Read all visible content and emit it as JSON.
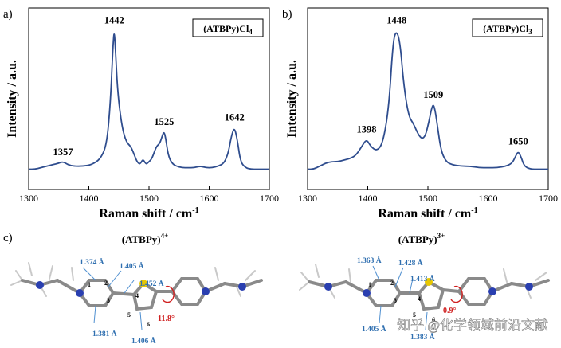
{
  "chart_data": [
    {
      "panel": "a)",
      "type": "line",
      "title": "(ATBPy)Cl4",
      "legend_main": "(ATBPy)Cl",
      "legend_sub": "4",
      "xlabel": "Raman shift / cm",
      "xlabel_sup": "-1",
      "ylabel": "Intensity / a.u.",
      "xlim": [
        1300,
        1700
      ],
      "ylim": [
        0,
        1
      ],
      "xticks": [
        1300,
        1400,
        1500,
        1600,
        1700
      ],
      "x": [
        1300,
        1310,
        1320,
        1330,
        1340,
        1350,
        1357,
        1365,
        1375,
        1390,
        1405,
        1420,
        1430,
        1436,
        1440,
        1442,
        1444,
        1448,
        1455,
        1462,
        1470,
        1476,
        1480,
        1485,
        1490,
        1495,
        1500,
        1505,
        1512,
        1518,
        1522,
        1525,
        1528,
        1532,
        1538,
        1545,
        1555,
        1565,
        1575,
        1585,
        1595,
        1605,
        1615,
        1625,
        1632,
        1637,
        1642,
        1647,
        1652,
        1660,
        1670,
        1680,
        1690,
        1700
      ],
      "values": [
        0.05,
        0.05,
        0.06,
        0.07,
        0.08,
        0.09,
        0.1,
        0.08,
        0.07,
        0.07,
        0.08,
        0.12,
        0.22,
        0.5,
        0.86,
        0.97,
        0.86,
        0.55,
        0.33,
        0.23,
        0.2,
        0.14,
        0.1,
        0.08,
        0.12,
        0.08,
        0.1,
        0.12,
        0.2,
        0.22,
        0.27,
        0.3,
        0.25,
        0.14,
        0.09,
        0.07,
        0.06,
        0.06,
        0.06,
        0.07,
        0.06,
        0.06,
        0.07,
        0.09,
        0.16,
        0.27,
        0.33,
        0.24,
        0.1,
        0.06,
        0.05,
        0.05,
        0.05,
        0.05
      ],
      "peaks": [
        {
          "x": 1357,
          "y": 0.1,
          "label": "1357"
        },
        {
          "x": 1442,
          "y": 0.97,
          "label": "1442"
        },
        {
          "x": 1525,
          "y": 0.3,
          "label": "1525"
        },
        {
          "x": 1642,
          "y": 0.33,
          "label": "1642"
        }
      ]
    },
    {
      "panel": "b)",
      "type": "line",
      "title": "(ATBPy)Cl3",
      "legend_main": "(ATBPy)Cl",
      "legend_sub": "3",
      "xlabel": "Raman shift / cm",
      "xlabel_sup": "-1",
      "ylabel": "Intensity / a.u.",
      "xlim": [
        1300,
        1700
      ],
      "ylim": [
        0,
        1
      ],
      "xticks": [
        1300,
        1400,
        1500,
        1600,
        1700
      ],
      "x": [
        1300,
        1310,
        1320,
        1330,
        1340,
        1350,
        1360,
        1370,
        1380,
        1390,
        1398,
        1405,
        1415,
        1425,
        1435,
        1442,
        1448,
        1454,
        1460,
        1468,
        1476,
        1484,
        1490,
        1496,
        1502,
        1506,
        1509,
        1512,
        1516,
        1522,
        1530,
        1540,
        1555,
        1570,
        1585,
        1600,
        1615,
        1630,
        1640,
        1645,
        1650,
        1655,
        1660,
        1670,
        1685,
        1700
      ],
      "values": [
        0.05,
        0.05,
        0.07,
        0.09,
        0.1,
        0.1,
        0.11,
        0.12,
        0.14,
        0.2,
        0.25,
        0.2,
        0.17,
        0.22,
        0.45,
        0.9,
        0.97,
        0.88,
        0.6,
        0.4,
        0.35,
        0.28,
        0.25,
        0.27,
        0.37,
        0.45,
        0.48,
        0.44,
        0.33,
        0.17,
        0.1,
        0.08,
        0.07,
        0.07,
        0.06,
        0.06,
        0.06,
        0.07,
        0.09,
        0.13,
        0.17,
        0.13,
        0.07,
        0.05,
        0.05,
        0.05
      ],
      "peaks": [
        {
          "x": 1398,
          "y": 0.25,
          "label": "1398"
        },
        {
          "x": 1448,
          "y": 0.97,
          "label": "1448"
        },
        {
          "x": 1509,
          "y": 0.48,
          "label": "1509"
        },
        {
          "x": 1650,
          "y": 0.17,
          "label": "1650"
        }
      ]
    }
  ],
  "structures": {
    "panel": "c)",
    "left": {
      "title_main": "(ATBPy)",
      "title_sup": "4+",
      "bond_lengths": [
        "1.374 Å",
        "1.405 Å",
        "1.452 Å",
        "1.381 Å",
        "1.406 Å"
      ],
      "dihedral": "11.8°",
      "atom_numbers": [
        "1",
        "2",
        "3",
        "4",
        "5",
        "6"
      ]
    },
    "right": {
      "title_main": "(ATBPy)",
      "title_sup": "3+",
      "bond_lengths": [
        "1.363 Å",
        "1.428 Å",
        "1.413 Å",
        "1.405 Å",
        "1.383 Å"
      ],
      "dihedral": "0.9°",
      "atom_numbers": [
        "1",
        "2",
        "3",
        "4",
        "5",
        "6"
      ]
    }
  },
  "watermark": "知乎 @化学领域前沿文献",
  "colors": {
    "series": "#2f4d8e",
    "bond_label": "#2f6fb0",
    "dihedral": "#d02020"
  }
}
